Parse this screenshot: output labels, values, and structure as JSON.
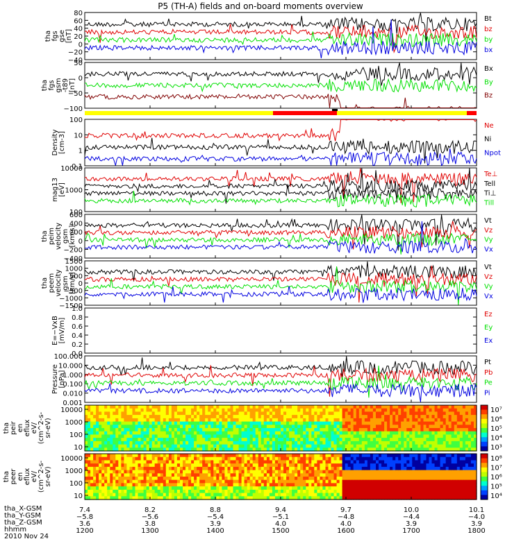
{
  "title": "P5 (TH-A) fields and on-board moments overview",
  "colors": {
    "black": "#000000",
    "red": "#e00000",
    "green": "#00e000",
    "blue": "#0000e0",
    "darkred": "#800000",
    "yellow": "#ffff00",
    "brightred": "#ff0000"
  },
  "chart_data": {
    "type": "line",
    "date_label": "2010 Nov 24",
    "x_label": "hhmm",
    "x_range": [
      "1200",
      "1800"
    ],
    "x_ticks": [
      "1200",
      "1300",
      "1400",
      "1500",
      "1600",
      "1700",
      "1800"
    ],
    "ephemeris": [
      {
        "label": "tha_X-GSM",
        "values": [
          "7.4",
          "8.2",
          "8.8",
          "9.4",
          "9.7",
          "10.0",
          "10.1"
        ]
      },
      {
        "label": "tha_Y-GSM",
        "values": [
          "−5.8",
          "−5.6",
          "−5.4",
          "−5.1",
          "−4.8",
          "−4.4",
          "−4.0"
        ]
      },
      {
        "label": "tha_Z-GSM",
        "values": [
          "3.6",
          "3.8",
          "3.9",
          "4.0",
          "4.0",
          "3.9",
          "3.9"
        ]
      }
    ],
    "panels": [
      {
        "id": "fgs",
        "ylabel": [
          "tha",
          "fgs",
          "gse",
          "[nT]"
        ],
        "ylim": [
          -40,
          80
        ],
        "ticks": [
          "80",
          "60",
          "40",
          "20",
          "0",
          "−20",
          "−40"
        ],
        "series": [
          {
            "name": "Bt",
            "color": "#000000"
          },
          {
            "name": "bz",
            "color": "#e00000"
          },
          {
            "name": "by",
            "color": "#00e000"
          },
          {
            "name": "bx",
            "color": "#0000e0"
          }
        ]
      },
      {
        "id": "t89",
        "ylabel": [
          "tha",
          "fgs",
          "gsm",
          "-t89",
          "[nT]"
        ],
        "ylim": [
          -120,
          60
        ],
        "ticks": [
          "50",
          "0",
          "−50",
          "−100"
        ],
        "series": [
          {
            "name": "Bx",
            "color": "#000000"
          },
          {
            "name": "By",
            "color": "#00e000"
          },
          {
            "name": "Bz",
            "color": "#800000"
          }
        ]
      },
      {
        "id": "density",
        "ylabel": [
          "Density",
          "[cm-3]"
        ],
        "log": true,
        "ylim": [
          0.1,
          200
        ],
        "ticks": [
          "100",
          "10",
          "1",
          "0.1"
        ],
        "series": [
          {
            "name": "Ne",
            "color": "#e00000"
          },
          {
            "name": "Ni",
            "color": "#000000"
          },
          {
            "name": "Npot",
            "color": "#0000e0"
          }
        ]
      },
      {
        "id": "temp",
        "ylabel": [
          "mag13",
          "[eV]"
        ],
        "log": true,
        "ylim": [
          30,
          15000
        ],
        "ticks": [
          "10000",
          "1000",
          "100"
        ],
        "series": [
          {
            "name": "Te⊥",
            "color": "#e00000"
          },
          {
            "name": "Tell",
            "color": "#000000"
          },
          {
            "name": "Ti⊥",
            "color": "#000000"
          },
          {
            "name": "Till",
            "color": "#00e000"
          }
        ]
      },
      {
        "id": "peim",
        "ylabel": [
          "tha",
          "peim",
          "velocity",
          "gsm",
          "[km/s]"
        ],
        "ylim": [
          -400,
          650
        ],
        "ticks": [
          "600",
          "400",
          "200",
          "0",
          "−200",
          "−400"
        ],
        "series": [
          {
            "name": "Vt",
            "color": "#000000"
          },
          {
            "name": "Vz",
            "color": "#e00000"
          },
          {
            "name": "Vy",
            "color": "#00e000"
          },
          {
            "name": "Vx",
            "color": "#0000e0"
          }
        ]
      },
      {
        "id": "peem",
        "ylabel": [
          "tha",
          "peem",
          "velocity",
          "gsm",
          "[km/s]"
        ],
        "ylim": [
          -1500,
          1500
        ],
        "ticks": [
          "1500",
          "1000",
          "500",
          "0",
          "−500",
          "−1000",
          "−1500"
        ],
        "series": [
          {
            "name": "Vt",
            "color": "#000000"
          },
          {
            "name": "Vz",
            "color": "#e00000"
          },
          {
            "name": "Vy",
            "color": "#00e000"
          },
          {
            "name": "Vx",
            "color": "#0000e0"
          }
        ]
      },
      {
        "id": "efield",
        "ylabel": [
          "E=−VxB",
          "[mV/m]"
        ],
        "ylim": [
          0,
          1
        ],
        "ticks": [
          "1.0",
          "0.8",
          "0.6",
          "0.4",
          "0.2",
          "0.0"
        ],
        "series": [
          {
            "name": "Ez",
            "color": "#e00000"
          },
          {
            "name": "Ey",
            "color": "#00e000"
          },
          {
            "name": "Ex",
            "color": "#0000e0"
          }
        ]
      },
      {
        "id": "pressure",
        "ylabel": [
          "Pressure",
          "[nPa]"
        ],
        "log": true,
        "ylim": [
          0.001,
          100
        ],
        "ticks": [
          "100.000",
          "10.000",
          "1.000",
          "0.100",
          "0.010",
          "0.001"
        ],
        "series": [
          {
            "name": "Pt",
            "color": "#000000"
          },
          {
            "name": "Pb",
            "color": "#e00000"
          },
          {
            "name": "Pe",
            "color": "#00e000"
          },
          {
            "name": "Pi",
            "color": "#0000e0"
          }
        ]
      }
    ],
    "spectrograms": [
      {
        "id": "peir",
        "ylabel": [
          "tha",
          "peir",
          "en",
          "eflux",
          "eV/",
          "(cm^2-s-",
          "sr-eV)"
        ],
        "ylim": [
          10,
          20000
        ],
        "ticks": [
          "10000",
          "1000",
          "100",
          "10"
        ],
        "colorbar_ticks": [
          "10⁷",
          "10⁶",
          "10⁵",
          "10⁴",
          "10³"
        ]
      },
      {
        "id": "peer",
        "ylabel": [
          "tha",
          "peer",
          "en",
          "eflux",
          "eV/",
          "(cm^2-s-",
          "sr-eV)"
        ],
        "ylim": [
          10,
          20000
        ],
        "ticks": [
          "10000",
          "1000",
          "100",
          "10"
        ],
        "colorbar_ticks": [
          "10⁸",
          "10⁷",
          "10⁶",
          "10⁵",
          "10⁴"
        ]
      }
    ]
  }
}
